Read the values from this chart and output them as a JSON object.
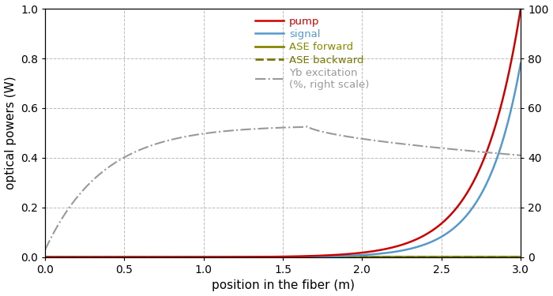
{
  "xlabel": "position in the fiber (m)",
  "ylabel": "optical powers (W)",
  "xlim": [
    0,
    3
  ],
  "ylim_left": [
    0,
    1
  ],
  "ylim_right": [
    0,
    100
  ],
  "x_ticks": [
    0,
    0.5,
    1.0,
    1.5,
    2.0,
    2.5,
    3.0
  ],
  "y_ticks_left": [
    0,
    0.2,
    0.4,
    0.6,
    0.8,
    1.0
  ],
  "y_ticks_right": [
    0,
    20,
    40,
    60,
    80,
    100
  ],
  "colors": {
    "pump": "#cc0000",
    "signal": "#5599cc",
    "ase_fwd": "#888800",
    "ase_bwd": "#777700",
    "yb": "#999999"
  },
  "legend": {
    "pump": "pump",
    "signal": "signal",
    "ase_fwd": "ASE forward",
    "ase_bwd": "ASE backward",
    "yb": "Yb excitation\n(%, right scale)"
  },
  "background_color": "#ffffff",
  "grid_color": "#bbbbbb"
}
